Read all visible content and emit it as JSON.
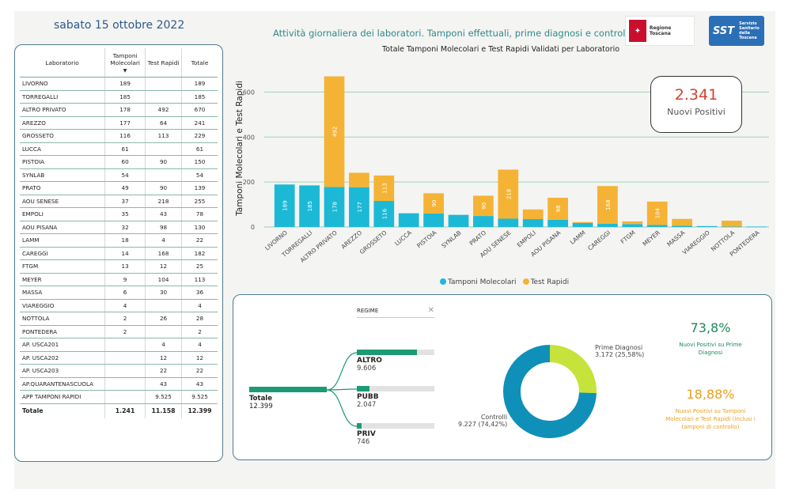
{
  "date": "sabato 15 ottobre 2022",
  "subtitle": "Attività giornaliera dei laboratori. Tamponi effettuali, prime diagnosi e controlli",
  "logos": {
    "regione": "Regione Toscana",
    "sst": "SST",
    "sst_text": "Servizio Sanitario della Toscana"
  },
  "table": {
    "headers": [
      "Laboratorio",
      "Tamponi Molecolari",
      "Test Rapidi",
      "Totale"
    ],
    "rows": [
      [
        "LIVORNO",
        "189",
        "",
        "189"
      ],
      [
        "TORREGALLI",
        "185",
        "",
        "185"
      ],
      [
        "ALTRO PRIVATO",
        "178",
        "492",
        "670"
      ],
      [
        "AREZZO",
        "177",
        "64",
        "241"
      ],
      [
        "GROSSETO",
        "116",
        "113",
        "229"
      ],
      [
        "LUCCA",
        "61",
        "",
        "61"
      ],
      [
        "PISTOIA",
        "60",
        "90",
        "150"
      ],
      [
        "SYNLAB",
        "54",
        "",
        "54"
      ],
      [
        "PRATO",
        "49",
        "90",
        "139"
      ],
      [
        "AOU SENESE",
        "37",
        "218",
        "255"
      ],
      [
        "EMPOLI",
        "35",
        "43",
        "78"
      ],
      [
        "AOU PISANA",
        "32",
        "98",
        "130"
      ],
      [
        "LAMM",
        "18",
        "4",
        "22"
      ],
      [
        "CAREGGI",
        "14",
        "168",
        "182"
      ],
      [
        "FTGM",
        "13",
        "12",
        "25"
      ],
      [
        "MEYER",
        "9",
        "104",
        "113"
      ],
      [
        "MASSA",
        "6",
        "30",
        "36"
      ],
      [
        "VIAREGGIO",
        "4",
        "",
        "4"
      ],
      [
        "NOTTOLA",
        "2",
        "26",
        "28"
      ],
      [
        "PONTEDERA",
        "2",
        "",
        "2"
      ],
      [
        "AP. USCA201",
        "",
        "4",
        "4"
      ],
      [
        "AP. USCA202",
        "",
        "12",
        "12"
      ],
      [
        "AP. USCA203",
        "",
        "22",
        "22"
      ],
      [
        "AP.QUARANTENASCUOLA",
        "",
        "43",
        "43"
      ],
      [
        "APP TAMPONI RAPIDI",
        "",
        "9.525",
        "9.525"
      ]
    ],
    "total": [
      "Totale",
      "1.241",
      "11.158",
      "12.399"
    ]
  },
  "chart_data": {
    "type": "bar",
    "title": "Totale Tamponi Molecolari e Test Rapidi Validati per Laboratorio",
    "ylabel": "Tamponi Molecolari e Test Rapidi",
    "ylim": [
      0,
      700
    ],
    "yticks": [
      0,
      200,
      400,
      600
    ],
    "stacked": true,
    "categories": [
      "LIVORNO",
      "TORREGALLI",
      "ALTRO PRIVATO",
      "AREZZO",
      "GROSSETO",
      "LUCCA",
      "PISTOIA",
      "SYNLAB",
      "PRATO",
      "AOU SENESE",
      "EMPOLI",
      "AOU PISANA",
      "LAMM",
      "CAREGGI",
      "FTGM",
      "MEYER",
      "MASSA",
      "VIAREGGIO",
      "NOTTOLA",
      "PONTEDERA"
    ],
    "series": [
      {
        "name": "Tamponi Molecolari",
        "color": "#1cb9d6",
        "values": [
          189,
          185,
          178,
          177,
          116,
          61,
          60,
          54,
          49,
          37,
          35,
          32,
          18,
          14,
          13,
          9,
          6,
          4,
          2,
          2
        ]
      },
      {
        "name": "Test Rapidi",
        "color": "#f5b335",
        "values": [
          0,
          0,
          492,
          64,
          113,
          0,
          90,
          0,
          90,
          218,
          43,
          98,
          4,
          168,
          12,
          104,
          30,
          0,
          26,
          0
        ]
      }
    ],
    "legend_position": "bottom"
  },
  "kpi": {
    "value": "2.341",
    "label": "Nuovi Positivi"
  },
  "tree": {
    "filter_label": "REGIME",
    "root": {
      "name": "Totale",
      "value": "12.399"
    },
    "nodes": [
      {
        "name": "ALTRO",
        "value": "9.606",
        "fraction": 0.775
      },
      {
        "name": "PUBB",
        "value": "2.047",
        "fraction": 0.165
      },
      {
        "name": "PRIV",
        "value": "746",
        "fraction": 0.06
      }
    ]
  },
  "donut": {
    "slices": [
      {
        "name": "Prime Diagnosi",
        "label": "3.172 (25,58%)",
        "value": 25.58,
        "color": "#c5e33a"
      },
      {
        "name": "Controlli",
        "label": "9.227 (74,42%)",
        "value": 74.42,
        "color": "#0f90b8"
      }
    ]
  },
  "stats": {
    "p1": "73,8%",
    "p1_desc": "Nuovi Positivi su Prime Diagnosi",
    "p2": "18,88%",
    "p2_desc": "Nuovi Positivi su Tamponi Molecolari e Test Rapidi (inclusi i tamponi di controllo)"
  }
}
